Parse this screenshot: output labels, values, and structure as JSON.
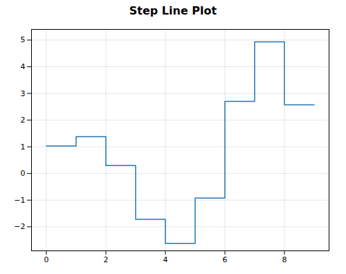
{
  "chart_data": {
    "type": "step",
    "title": "Step Line Plot",
    "x": [
      0,
      1,
      2,
      3,
      4,
      5,
      6,
      7,
      8,
      9
    ],
    "values": [
      1.03,
      1.38,
      0.3,
      -1.72,
      -2.62,
      -0.92,
      2.7,
      4.93,
      2.57,
      2.57
    ],
    "color": "#1f77b4",
    "xlim": [
      -0.5,
      9.5
    ],
    "ylim": [
      -2.9,
      5.4
    ],
    "xticks": [
      0,
      2,
      4,
      6,
      8
    ],
    "yticks": [
      -2,
      -1,
      0,
      1,
      2,
      3,
      4,
      5
    ],
    "grid": true
  }
}
